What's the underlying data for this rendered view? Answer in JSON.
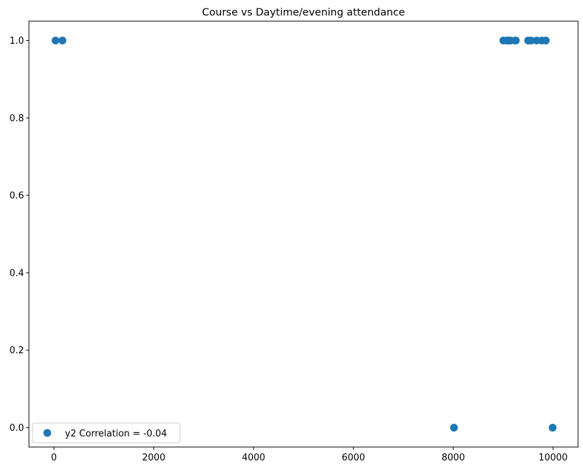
{
  "chart_data": {
    "type": "scatter",
    "title": "Course vs Daytime/evening attendance\t",
    "xlabel": "",
    "ylabel": "",
    "xlim": [
      -500,
      10500
    ],
    "ylim": [
      -0.05,
      1.05
    ],
    "x_ticks": [
      0,
      2000,
      4000,
      6000,
      8000,
      10000
    ],
    "x_tick_labels": [
      "0",
      "2000",
      "4000",
      "6000",
      "8000",
      "10000"
    ],
    "y_ticks": [
      0.0,
      0.2,
      0.4,
      0.6,
      0.8,
      1.0
    ],
    "y_tick_labels": [
      "0.0",
      "0.2",
      "0.4",
      "0.6",
      "0.8",
      "1.0"
    ],
    "grid": false,
    "legend_position": "lower-left",
    "marker_color": "#1f77b4",
    "series": [
      {
        "name": "y2 Correlation = -0.04",
        "points": [
          {
            "x": 33,
            "y": 1
          },
          {
            "x": 171,
            "y": 1
          },
          {
            "x": 8014,
            "y": 0
          },
          {
            "x": 9003,
            "y": 1
          },
          {
            "x": 9070,
            "y": 1
          },
          {
            "x": 9085,
            "y": 1
          },
          {
            "x": 9119,
            "y": 1
          },
          {
            "x": 9130,
            "y": 1
          },
          {
            "x": 9147,
            "y": 1
          },
          {
            "x": 9238,
            "y": 1
          },
          {
            "x": 9254,
            "y": 1
          },
          {
            "x": 9500,
            "y": 1
          },
          {
            "x": 9556,
            "y": 1
          },
          {
            "x": 9670,
            "y": 1
          },
          {
            "x": 9773,
            "y": 1
          },
          {
            "x": 9853,
            "y": 1
          },
          {
            "x": 9991,
            "y": 0
          }
        ]
      }
    ]
  }
}
